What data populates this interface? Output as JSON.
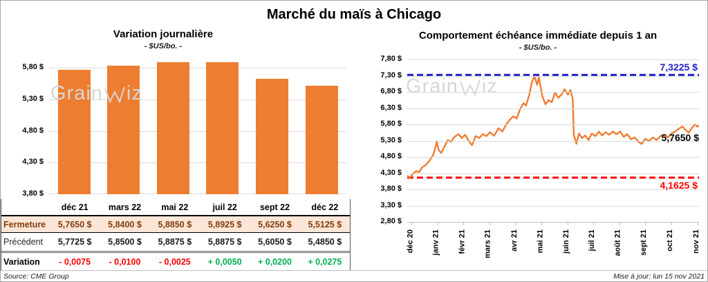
{
  "header": {
    "title": "Marché du maïs à Chicago"
  },
  "watermark": {
    "name": "GrainWiz",
    "prefix": "Grain",
    "suffix": "iz"
  },
  "footer": {
    "source": "Source: CME Group",
    "updated": "Mise à jour: lun 15 nov 2021"
  },
  "colors": {
    "orange": "#ED7D31",
    "table_highlight_bg": "#FBE5D6",
    "table_highlight_text": "#843C0C",
    "negative": "#FF0000",
    "positive": "#00B050",
    "resistance_blue": "#2121CE",
    "support_red": "#FF0000",
    "gridline": "#D9D9D9"
  },
  "chart_data": [
    {
      "type": "bar",
      "title": "Variation journalière",
      "subtitle": "- $US/bo. -",
      "categories": [
        "déc 21",
        "mars 22",
        "mai 22",
        "juil 22",
        "sept 22",
        "déc 22"
      ],
      "values": [
        5.765,
        5.84,
        5.885,
        5.8925,
        5.625,
        5.5125
      ],
      "bar_color": "#ED7D31",
      "ylim": [
        3.8,
        5.9
      ],
      "yticks": [
        5.8,
        5.3,
        4.8,
        4.3,
        3.8
      ],
      "ytick_labels": [
        "5,80 $",
        "5,30 $",
        "4,80 $",
        "4,30 $",
        "3,80 $"
      ],
      "grid": true,
      "table": {
        "rows": [
          {
            "key": "fermeture",
            "label": "Fermeture",
            "values": [
              "5,7650 $",
              "5,8400 $",
              "5,8850 $",
              "5,8925 $",
              "5,6250 $",
              "5,5125 $"
            ]
          },
          {
            "key": "precedent",
            "label": "Précédent",
            "values": [
              "5,7725 $",
              "5,8500 $",
              "5,8875 $",
              "5,8875 $",
              "5,6050 $",
              "5,4850 $"
            ]
          },
          {
            "key": "variation",
            "label": "Variation",
            "values": [
              "- 0,0075",
              "- 0,0100",
              "- 0,0025",
              "+ 0,0050",
              "+ 0,0200",
              "+ 0,0275"
            ]
          }
        ]
      }
    },
    {
      "type": "line",
      "title": "Comportement échéance immédiate depuis 1 an",
      "subtitle": "- $US/bo. -",
      "x_labels": [
        "déc 20",
        "janv 21",
        "févr 21",
        "mars 21",
        "avr 21",
        "mai 21",
        "juin 21",
        "juil 21",
        "août 21",
        "sept 21",
        "oct 21",
        "nov 21"
      ],
      "ylim": [
        2.8,
        7.8
      ],
      "yticks": [
        7.8,
        7.3,
        6.8,
        6.3,
        5.8,
        5.3,
        4.8,
        4.3,
        3.8,
        3.3,
        2.8
      ],
      "ytick_labels": [
        "7,80 $",
        "7,30 $",
        "6,80 $",
        "6,30 $",
        "5,80 $",
        "5,30 $",
        "4,80 $",
        "4,30 $",
        "3,80 $",
        "3,30 $",
        "2,80 $"
      ],
      "grid": true,
      "line_color": "#ED7D31",
      "resistance": {
        "value": 7.3225,
        "label": "7,3225 $",
        "color": "#2121CE",
        "style": "dashed"
      },
      "support": {
        "value": 4.1625,
        "label": "4,1625 $",
        "color": "#FF0000",
        "style": "dashed"
      },
      "last": {
        "value": 5.765,
        "label": "5,7650 $",
        "color": "#000000"
      },
      "series": [
        {
          "name": "échéance immédiate",
          "x_range": [
            0,
            11.35
          ],
          "points": [
            [
              0,
              4.22
            ],
            [
              0.1,
              4.16
            ],
            [
              0.22,
              4.28
            ],
            [
              0.34,
              4.36
            ],
            [
              0.46,
              4.33
            ],
            [
              0.58,
              4.48
            ],
            [
              0.72,
              4.55
            ],
            [
              0.86,
              4.68
            ],
            [
              1,
              4.85
            ],
            [
              1.08,
              5.05
            ],
            [
              1.15,
              5.28
            ],
            [
              1.22,
              5.02
            ],
            [
              1.32,
              4.92
            ],
            [
              1.45,
              5.12
            ],
            [
              1.58,
              5.32
            ],
            [
              1.7,
              5.26
            ],
            [
              1.84,
              5.42
            ],
            [
              2,
              5.5
            ],
            [
              2.12,
              5.38
            ],
            [
              2.25,
              5.48
            ],
            [
              2.4,
              5.28
            ],
            [
              2.52,
              5.16
            ],
            [
              2.66,
              5.44
            ],
            [
              2.8,
              5.38
            ],
            [
              2.94,
              5.5
            ],
            [
              3.08,
              5.44
            ],
            [
              3.22,
              5.56
            ],
            [
              3.38,
              5.45
            ],
            [
              3.55,
              5.68
            ],
            [
              3.7,
              5.58
            ],
            [
              3.85,
              5.8
            ],
            [
              4,
              5.95
            ],
            [
              4.12,
              6.05
            ],
            [
              4.25,
              5.98
            ],
            [
              4.4,
              6.28
            ],
            [
              4.52,
              6.45
            ],
            [
              4.62,
              6.38
            ],
            [
              4.75,
              6.72
            ],
            [
              4.85,
              7.1
            ],
            [
              4.95,
              7.28
            ],
            [
              5.05,
              7.02
            ],
            [
              5.12,
              7.25
            ],
            [
              5.25,
              6.68
            ],
            [
              5.38,
              6.42
            ],
            [
              5.5,
              6.55
            ],
            [
              5.62,
              6.48
            ],
            [
              5.75,
              6.78
            ],
            [
              5.88,
              6.62
            ],
            [
              6,
              6.72
            ],
            [
              6.12,
              6.88
            ],
            [
              6.25,
              6.72
            ],
            [
              6.35,
              6.86
            ],
            [
              6.44,
              6.58
            ],
            [
              6.48,
              5.48
            ],
            [
              6.58,
              5.2
            ],
            [
              6.68,
              5.52
            ],
            [
              6.8,
              5.38
            ],
            [
              6.92,
              5.46
            ],
            [
              7.05,
              5.32
            ],
            [
              7.18,
              5.52
            ],
            [
              7.32,
              5.44
            ],
            [
              7.45,
              5.58
            ],
            [
              7.58,
              5.46
            ],
            [
              7.72,
              5.56
            ],
            [
              7.86,
              5.48
            ],
            [
              8,
              5.58
            ],
            [
              8.14,
              5.5
            ],
            [
              8.28,
              5.58
            ],
            [
              8.42,
              5.42
            ],
            [
              8.56,
              5.5
            ],
            [
              8.7,
              5.34
            ],
            [
              8.85,
              5.4
            ],
            [
              9,
              5.26
            ],
            [
              9.12,
              5.2
            ],
            [
              9.26,
              5.36
            ],
            [
              9.4,
              5.28
            ],
            [
              9.55,
              5.4
            ],
            [
              9.7,
              5.32
            ],
            [
              9.85,
              5.44
            ],
            [
              10,
              5.48
            ],
            [
              10.14,
              5.4
            ],
            [
              10.28,
              5.52
            ],
            [
              10.42,
              5.58
            ],
            [
              10.56,
              5.66
            ],
            [
              10.7,
              5.74
            ],
            [
              10.84,
              5.62
            ],
            [
              10.95,
              5.55
            ],
            [
              11.08,
              5.7
            ],
            [
              11.2,
              5.8
            ],
            [
              11.28,
              5.73
            ],
            [
              11.35,
              5.77
            ]
          ]
        }
      ]
    }
  ]
}
